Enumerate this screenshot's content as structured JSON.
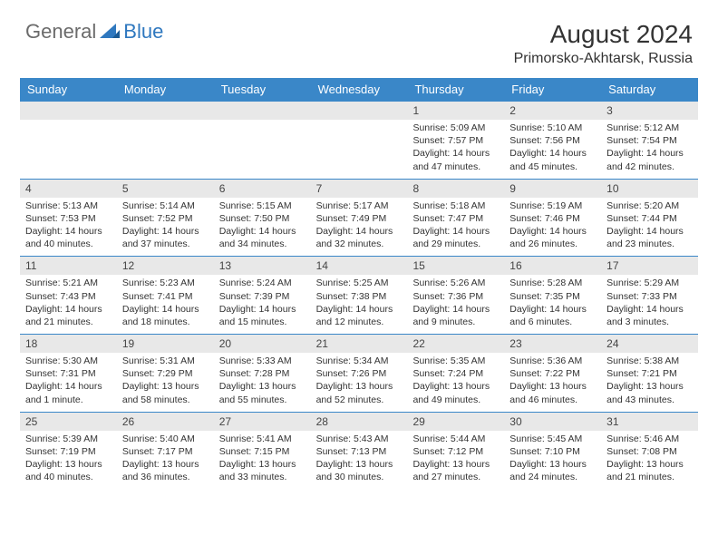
{
  "logo": {
    "general": "General",
    "blue": "Blue"
  },
  "title": "August 2024",
  "location": "Primorsko-Akhtarsk, Russia",
  "colors": {
    "header_bg": "#3a87c8",
    "header_text": "#ffffff",
    "daynum_bg": "#e8e8e8",
    "border": "#3a87c8",
    "body_text": "#333333",
    "logo_gray": "#6b6b6b",
    "logo_blue": "#2f78bf"
  },
  "dayHeaders": [
    "Sunday",
    "Monday",
    "Tuesday",
    "Wednesday",
    "Thursday",
    "Friday",
    "Saturday"
  ],
  "weeks": [
    [
      {
        "n": "",
        "sr": "",
        "ss": "",
        "dl": ""
      },
      {
        "n": "",
        "sr": "",
        "ss": "",
        "dl": ""
      },
      {
        "n": "",
        "sr": "",
        "ss": "",
        "dl": ""
      },
      {
        "n": "",
        "sr": "",
        "ss": "",
        "dl": ""
      },
      {
        "n": "1",
        "sr": "Sunrise: 5:09 AM",
        "ss": "Sunset: 7:57 PM",
        "dl": "Daylight: 14 hours and 47 minutes."
      },
      {
        "n": "2",
        "sr": "Sunrise: 5:10 AM",
        "ss": "Sunset: 7:56 PM",
        "dl": "Daylight: 14 hours and 45 minutes."
      },
      {
        "n": "3",
        "sr": "Sunrise: 5:12 AM",
        "ss": "Sunset: 7:54 PM",
        "dl": "Daylight: 14 hours and 42 minutes."
      }
    ],
    [
      {
        "n": "4",
        "sr": "Sunrise: 5:13 AM",
        "ss": "Sunset: 7:53 PM",
        "dl": "Daylight: 14 hours and 40 minutes."
      },
      {
        "n": "5",
        "sr": "Sunrise: 5:14 AM",
        "ss": "Sunset: 7:52 PM",
        "dl": "Daylight: 14 hours and 37 minutes."
      },
      {
        "n": "6",
        "sr": "Sunrise: 5:15 AM",
        "ss": "Sunset: 7:50 PM",
        "dl": "Daylight: 14 hours and 34 minutes."
      },
      {
        "n": "7",
        "sr": "Sunrise: 5:17 AM",
        "ss": "Sunset: 7:49 PM",
        "dl": "Daylight: 14 hours and 32 minutes."
      },
      {
        "n": "8",
        "sr": "Sunrise: 5:18 AM",
        "ss": "Sunset: 7:47 PM",
        "dl": "Daylight: 14 hours and 29 minutes."
      },
      {
        "n": "9",
        "sr": "Sunrise: 5:19 AM",
        "ss": "Sunset: 7:46 PM",
        "dl": "Daylight: 14 hours and 26 minutes."
      },
      {
        "n": "10",
        "sr": "Sunrise: 5:20 AM",
        "ss": "Sunset: 7:44 PM",
        "dl": "Daylight: 14 hours and 23 minutes."
      }
    ],
    [
      {
        "n": "11",
        "sr": "Sunrise: 5:21 AM",
        "ss": "Sunset: 7:43 PM",
        "dl": "Daylight: 14 hours and 21 minutes."
      },
      {
        "n": "12",
        "sr": "Sunrise: 5:23 AM",
        "ss": "Sunset: 7:41 PM",
        "dl": "Daylight: 14 hours and 18 minutes."
      },
      {
        "n": "13",
        "sr": "Sunrise: 5:24 AM",
        "ss": "Sunset: 7:39 PM",
        "dl": "Daylight: 14 hours and 15 minutes."
      },
      {
        "n": "14",
        "sr": "Sunrise: 5:25 AM",
        "ss": "Sunset: 7:38 PM",
        "dl": "Daylight: 14 hours and 12 minutes."
      },
      {
        "n": "15",
        "sr": "Sunrise: 5:26 AM",
        "ss": "Sunset: 7:36 PM",
        "dl": "Daylight: 14 hours and 9 minutes."
      },
      {
        "n": "16",
        "sr": "Sunrise: 5:28 AM",
        "ss": "Sunset: 7:35 PM",
        "dl": "Daylight: 14 hours and 6 minutes."
      },
      {
        "n": "17",
        "sr": "Sunrise: 5:29 AM",
        "ss": "Sunset: 7:33 PM",
        "dl": "Daylight: 14 hours and 3 minutes."
      }
    ],
    [
      {
        "n": "18",
        "sr": "Sunrise: 5:30 AM",
        "ss": "Sunset: 7:31 PM",
        "dl": "Daylight: 14 hours and 1 minute."
      },
      {
        "n": "19",
        "sr": "Sunrise: 5:31 AM",
        "ss": "Sunset: 7:29 PM",
        "dl": "Daylight: 13 hours and 58 minutes."
      },
      {
        "n": "20",
        "sr": "Sunrise: 5:33 AM",
        "ss": "Sunset: 7:28 PM",
        "dl": "Daylight: 13 hours and 55 minutes."
      },
      {
        "n": "21",
        "sr": "Sunrise: 5:34 AM",
        "ss": "Sunset: 7:26 PM",
        "dl": "Daylight: 13 hours and 52 minutes."
      },
      {
        "n": "22",
        "sr": "Sunrise: 5:35 AM",
        "ss": "Sunset: 7:24 PM",
        "dl": "Daylight: 13 hours and 49 minutes."
      },
      {
        "n": "23",
        "sr": "Sunrise: 5:36 AM",
        "ss": "Sunset: 7:22 PM",
        "dl": "Daylight: 13 hours and 46 minutes."
      },
      {
        "n": "24",
        "sr": "Sunrise: 5:38 AM",
        "ss": "Sunset: 7:21 PM",
        "dl": "Daylight: 13 hours and 43 minutes."
      }
    ],
    [
      {
        "n": "25",
        "sr": "Sunrise: 5:39 AM",
        "ss": "Sunset: 7:19 PM",
        "dl": "Daylight: 13 hours and 40 minutes."
      },
      {
        "n": "26",
        "sr": "Sunrise: 5:40 AM",
        "ss": "Sunset: 7:17 PM",
        "dl": "Daylight: 13 hours and 36 minutes."
      },
      {
        "n": "27",
        "sr": "Sunrise: 5:41 AM",
        "ss": "Sunset: 7:15 PM",
        "dl": "Daylight: 13 hours and 33 minutes."
      },
      {
        "n": "28",
        "sr": "Sunrise: 5:43 AM",
        "ss": "Sunset: 7:13 PM",
        "dl": "Daylight: 13 hours and 30 minutes."
      },
      {
        "n": "29",
        "sr": "Sunrise: 5:44 AM",
        "ss": "Sunset: 7:12 PM",
        "dl": "Daylight: 13 hours and 27 minutes."
      },
      {
        "n": "30",
        "sr": "Sunrise: 5:45 AM",
        "ss": "Sunset: 7:10 PM",
        "dl": "Daylight: 13 hours and 24 minutes."
      },
      {
        "n": "31",
        "sr": "Sunrise: 5:46 AM",
        "ss": "Sunset: 7:08 PM",
        "dl": "Daylight: 13 hours and 21 minutes."
      }
    ]
  ]
}
